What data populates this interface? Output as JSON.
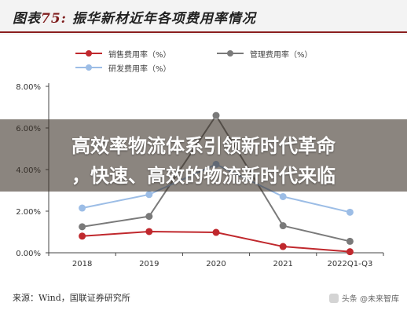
{
  "figure": {
    "title_prefix": "图表",
    "title_number": "75:",
    "title_text": "振华新材近年各项费用率情况"
  },
  "overlay": {
    "line1": "高效率物流体系引领新时代革命",
    "line2": "，快速、高效的物流新时代来临"
  },
  "footer": {
    "source": "来源：Wind，国联证券研究所",
    "watermark": "头条 @未来智库"
  },
  "colors": {
    "sales": "#c0282d",
    "management": "#7a7a7a",
    "rnd": "#9cbde6",
    "axis": "#444444",
    "grid": "#ffffff",
    "title_rule": "#8b1e1e"
  },
  "chart_data": {
    "type": "line",
    "categories": [
      "2018",
      "2019",
      "2020",
      "2021",
      "2022Q1-Q3"
    ],
    "y_ticks": [
      "0.00%",
      "2.00%",
      "4.00%",
      "6.00%",
      "8.00%"
    ],
    "ylim": [
      0,
      8
    ],
    "grid": false,
    "legend_placement": "top",
    "series": [
      {
        "name": "销售费用率（%）",
        "key": "sales",
        "values": [
          0.8,
          1.02,
          0.98,
          0.3,
          0.05
        ]
      },
      {
        "name": "管理费用率（%）",
        "key": "management",
        "values": [
          1.25,
          1.75,
          6.6,
          1.3,
          0.55
        ]
      },
      {
        "name": "研发费用率（%）",
        "key": "rnd",
        "values": [
          2.15,
          2.8,
          4.25,
          2.7,
          1.95
        ]
      }
    ]
  }
}
